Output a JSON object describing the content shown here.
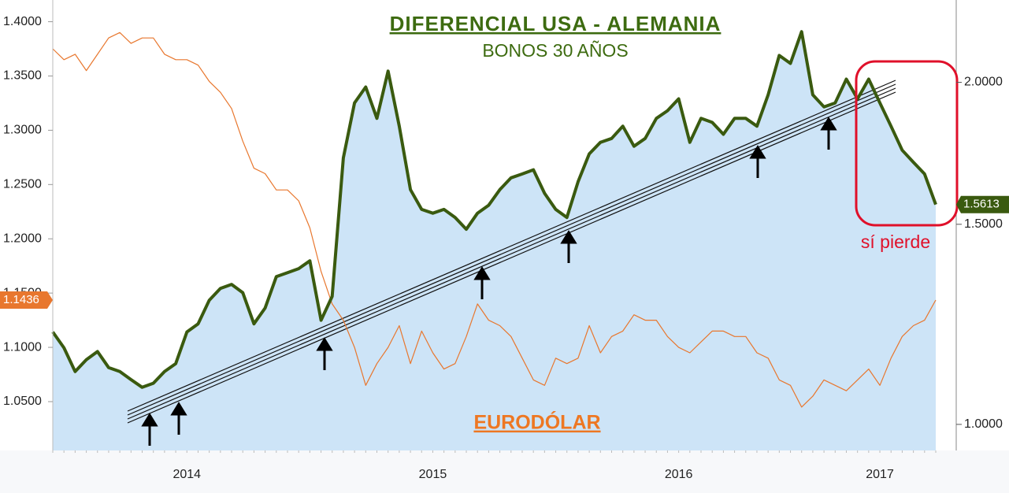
{
  "chart_data": {
    "type": "line",
    "title": "DIFERENCIAL USA - ALEMANIA",
    "subtitle": "BONOS 30 AÑOS",
    "annotations": [
      "sí pierde"
    ],
    "categories": [
      null,
      null,
      null,
      null,
      null,
      null,
      null,
      null,
      null,
      null,
      null,
      null,
      "2014",
      null,
      null,
      null,
      null,
      null,
      null,
      null,
      null,
      null,
      null,
      null,
      null,
      null,
      null,
      null,
      null,
      null,
      null,
      null,
      null,
      null,
      "2015",
      null,
      null,
      null,
      null,
      null,
      null,
      null,
      null,
      null,
      null,
      null,
      null,
      null,
      null,
      null,
      null,
      null,
      null,
      null,
      null,
      null,
      "2016",
      null,
      null,
      null,
      null,
      null,
      null,
      null,
      null,
      null,
      null,
      null,
      null,
      null,
      null,
      null,
      null,
      null,
      "2017",
      null,
      null,
      null,
      null,
      null
    ],
    "ylim": [
      1.005,
      1.42
    ],
    "yticks": [
      {
        "value": 1.05,
        "label": "1.0500"
      },
      {
        "value": 1.1,
        "label": "1.1000"
      },
      {
        "value": 1.15,
        "label": "1.1500"
      },
      {
        "value": 1.2,
        "label": "1.2000"
      },
      {
        "value": 1.25,
        "label": "1.2500"
      },
      {
        "value": 1.3,
        "label": "1.3000"
      },
      {
        "value": 1.35,
        "label": "1.3500"
      },
      {
        "value": 1.4,
        "label": "1.4000"
      }
    ],
    "y2lim": [
      0.9485,
      2.363
    ],
    "y2scale": "log",
    "y2ticks": [
      {
        "value": 1,
        "label": "1.0000"
      },
      {
        "value": 1.5,
        "label": "1.5000"
      },
      {
        "value": 2,
        "label": "2.0000"
      }
    ],
    "grid": false,
    "series": [
      {
        "name": "EURODÓLAR",
        "color": "#e8772e",
        "axis": "y",
        "values": [
          1.375,
          1.365,
          1.37,
          1.355,
          1.37,
          1.385,
          1.39,
          1.38,
          1.385,
          1.385,
          1.37,
          1.365,
          1.365,
          1.36,
          1.345,
          1.335,
          1.32,
          1.29,
          1.265,
          1.26,
          1.245,
          1.245,
          1.235,
          1.21,
          1.17,
          1.14,
          1.125,
          1.1,
          1.065,
          1.085,
          1.1,
          1.12,
          1.085,
          1.115,
          1.095,
          1.08,
          1.085,
          1.11,
          1.14,
          1.125,
          1.12,
          1.11,
          1.09,
          1.07,
          1.065,
          1.09,
          1.085,
          1.09,
          1.12,
          1.095,
          1.11,
          1.115,
          1.13,
          1.125,
          1.125,
          1.11,
          1.1,
          1.095,
          1.105,
          1.115,
          1.115,
          1.11,
          1.11,
          1.095,
          1.09,
          1.07,
          1.065,
          1.045,
          1.055,
          1.07,
          1.065,
          1.06,
          1.07,
          1.08,
          1.065,
          1.09,
          1.11,
          1.12,
          1.125,
          1.1436
        ]
      },
      {
        "color": "#3a5a0f",
        "area_color": "#cde4f7",
        "axis": "y2",
        "values": [
          1.206,
          1.168,
          1.113,
          1.14,
          1.159,
          1.122,
          1.113,
          1.095,
          1.078,
          1.087,
          1.113,
          1.131,
          1.206,
          1.226,
          1.286,
          1.317,
          1.328,
          1.306,
          1.226,
          1.266,
          1.349,
          1.36,
          1.371,
          1.393,
          1.235,
          1.296,
          1.716,
          1.918,
          1.981,
          1.859,
          2.046,
          1.83,
          1.609,
          1.546,
          1.534,
          1.546,
          1.521,
          1.485,
          1.534,
          1.559,
          1.609,
          1.648,
          1.661,
          1.675,
          1.597,
          1.546,
          1.521,
          1.635,
          1.73,
          1.771,
          1.785,
          1.83,
          1.757,
          1.785,
          1.859,
          1.888,
          1.934,
          1.771,
          1.859,
          1.844,
          1.8,
          1.859,
          1.859,
          1.83,
          1.95,
          2.112,
          2.078,
          2.216,
          1.95,
          1.903,
          1.918,
          2.013,
          1.934,
          2.013,
          1.918,
          1.83,
          1.743,
          1.701,
          1.661,
          1.5613
        ]
      }
    ]
  }
}
